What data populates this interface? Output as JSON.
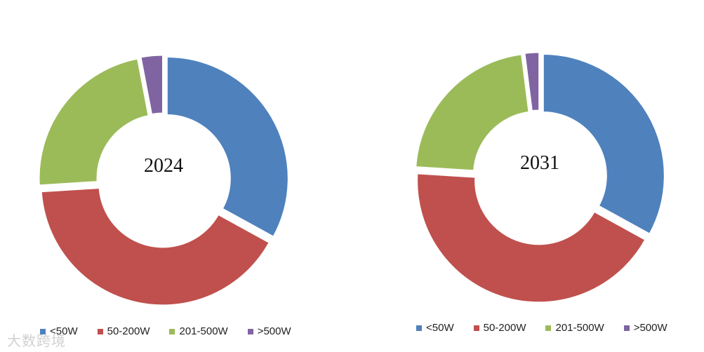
{
  "chart_data": [
    {
      "type": "pie",
      "center_label": "2024",
      "categories": [
        "<50W",
        "50-200W",
        "201-500W",
        ">500W"
      ],
      "values": [
        33,
        41,
        23,
        3
      ],
      "colors": [
        "#4F81BD",
        "#C0504D",
        "#9BBB59",
        "#8064A2"
      ],
      "legend_position": "bottom"
    },
    {
      "type": "pie",
      "center_label": "2031",
      "categories": [
        "<50W",
        "50-200W",
        "201-500W",
        ">500W"
      ],
      "values": [
        33,
        43,
        22,
        2
      ],
      "colors": [
        "#4F81BD",
        "#C0504D",
        "#9BBB59",
        "#8064A2"
      ],
      "legend_position": "bottom"
    }
  ],
  "watermark": "大数跨境"
}
